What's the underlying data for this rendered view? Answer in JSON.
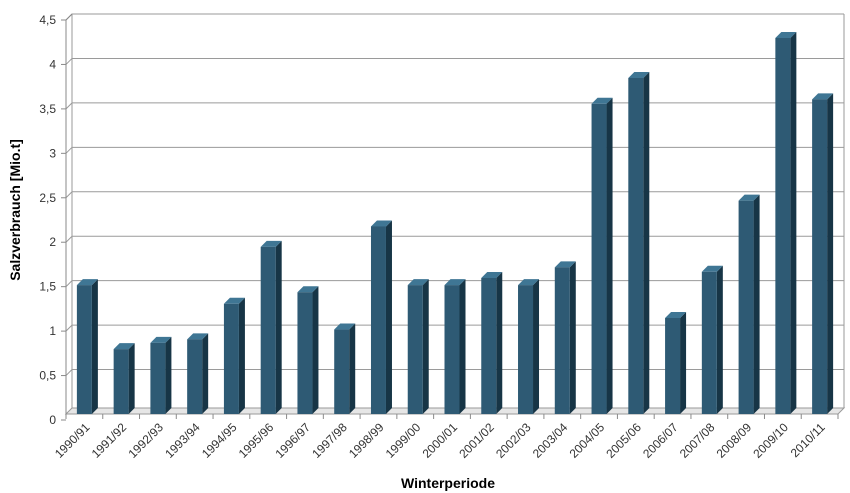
{
  "chart_data": {
    "type": "bar",
    "title": "",
    "xlabel": "Winterperiode",
    "ylabel": "Salzverbrauch [Mio.t]",
    "ylim": [
      0,
      4.5
    ],
    "yticks": [
      "0",
      "0,5",
      "1",
      "1,5",
      "2",
      "2,5",
      "3",
      "3,5",
      "4",
      "4,5"
    ],
    "ytick_values": [
      0,
      0.5,
      1,
      1.5,
      2,
      2.5,
      3,
      3.5,
      4,
      4.5
    ],
    "categories": [
      "1990/91",
      "1991/92",
      "1992/93",
      "1993/94",
      "1994/95",
      "1995/96",
      "1996/97",
      "1997/98",
      "1998/99",
      "1999/00",
      "2000/01",
      "2001/02",
      "2002/03",
      "2003/04",
      "2004/05",
      "2005/06",
      "2006/07",
      "2007/08",
      "2008/09",
      "2009/10",
      "2010/11"
    ],
    "values": [
      1.45,
      0.73,
      0.8,
      0.84,
      1.24,
      1.88,
      1.37,
      0.95,
      2.11,
      1.45,
      1.45,
      1.53,
      1.45,
      1.65,
      3.49,
      3.78,
      1.08,
      1.6,
      2.4,
      4.23,
      3.54
    ],
    "grid": true,
    "legend": "none",
    "bar_color": "#2e5a74",
    "bar_top_color": "#3f7694",
    "bar_side_color": "#173546"
  }
}
